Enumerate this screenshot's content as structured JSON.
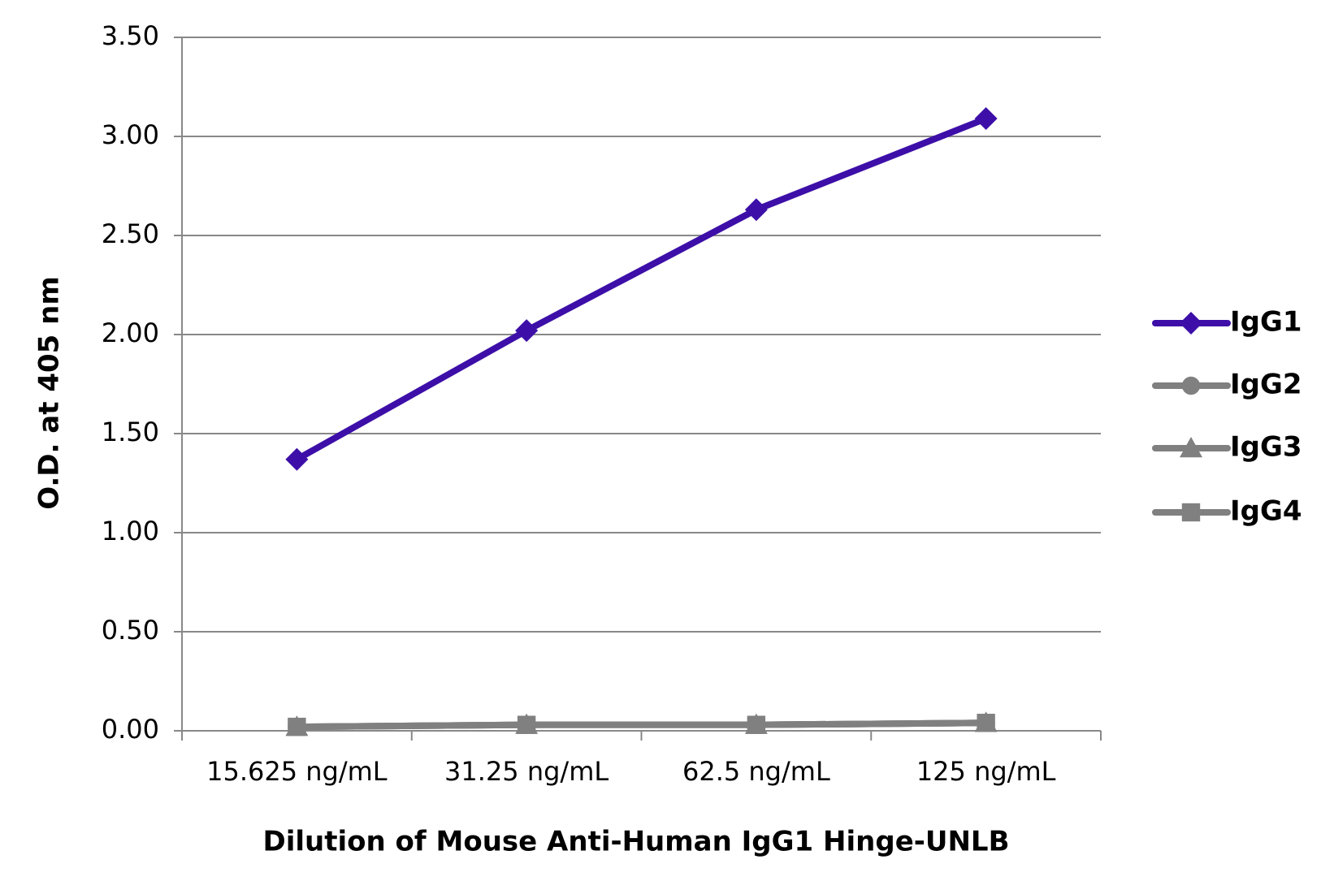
{
  "chart_data": {
    "type": "line",
    "x_label": "Dilution of Mouse Anti-Human IgG1 Hinge-UNLB",
    "y_label": "O.D. at 405 nm",
    "categories": [
      "15.625 ng/mL",
      "31.25 ng/mL",
      "62.5 ng/mL",
      "125 ng/mL"
    ],
    "series": [
      {
        "name": "IgG1",
        "color": "#3d0fa8",
        "marker": "diamond",
        "values": [
          1.37,
          2.02,
          2.63,
          3.09
        ]
      },
      {
        "name": "IgG2",
        "color": "#808080",
        "marker": "circle",
        "values": [
          0.02,
          0.03,
          0.03,
          0.04
        ]
      },
      {
        "name": "IgG3",
        "color": "#808080",
        "marker": "triangle",
        "values": [
          0.02,
          0.03,
          0.03,
          0.04
        ]
      },
      {
        "name": "IgG4",
        "color": "#808080",
        "marker": "square",
        "values": [
          0.02,
          0.03,
          0.03,
          0.04
        ]
      }
    ],
    "ylim": [
      0,
      3.5
    ],
    "yticks": [
      {
        "value": 0,
        "label": "0.00"
      },
      {
        "value": 0.5,
        "label": "0.50"
      },
      {
        "value": 1,
        "label": "1.00"
      },
      {
        "value": 1.5,
        "label": "1.50"
      },
      {
        "value": 2,
        "label": "2.00"
      },
      {
        "value": 2.5,
        "label": "2.50"
      },
      {
        "value": 3,
        "label": "3.00"
      },
      {
        "value": 3.5,
        "label": "3.50"
      }
    ],
    "grid": true,
    "legend": "right"
  }
}
